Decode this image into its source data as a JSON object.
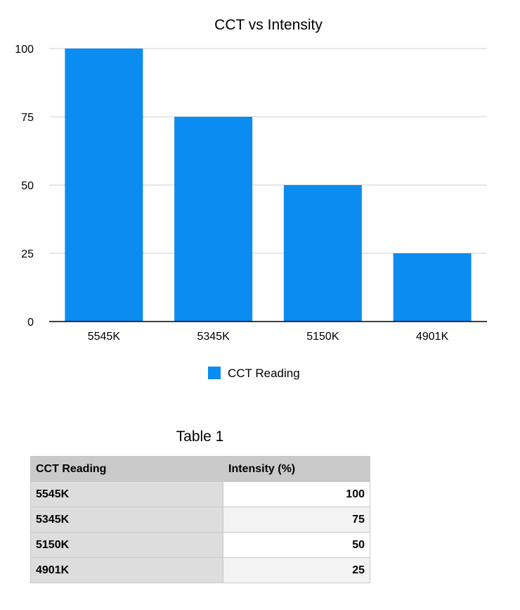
{
  "chart_data": {
    "type": "bar",
    "title": "CCT vs Intensity",
    "categories": [
      "5545K",
      "5345K",
      "5150K",
      "4901K"
    ],
    "series": [
      {
        "name": "CCT Reading",
        "values": [
          100,
          75,
          50,
          25
        ]
      }
    ],
    "y_ticks": [
      "0",
      "25",
      "50",
      "75",
      "100"
    ],
    "ylim": [
      0,
      100
    ],
    "grid": true,
    "legend_position": "bottom",
    "bar_color": "#0a8cf0"
  },
  "table": {
    "title": "Table 1",
    "headers": [
      "CCT Reading",
      "Intensity (%)"
    ],
    "rows": [
      {
        "label": "5545K",
        "value": "100"
      },
      {
        "label": "5345K",
        "value": "75"
      },
      {
        "label": "5150K",
        "value": "50"
      },
      {
        "label": "4901K",
        "value": "25"
      }
    ]
  }
}
